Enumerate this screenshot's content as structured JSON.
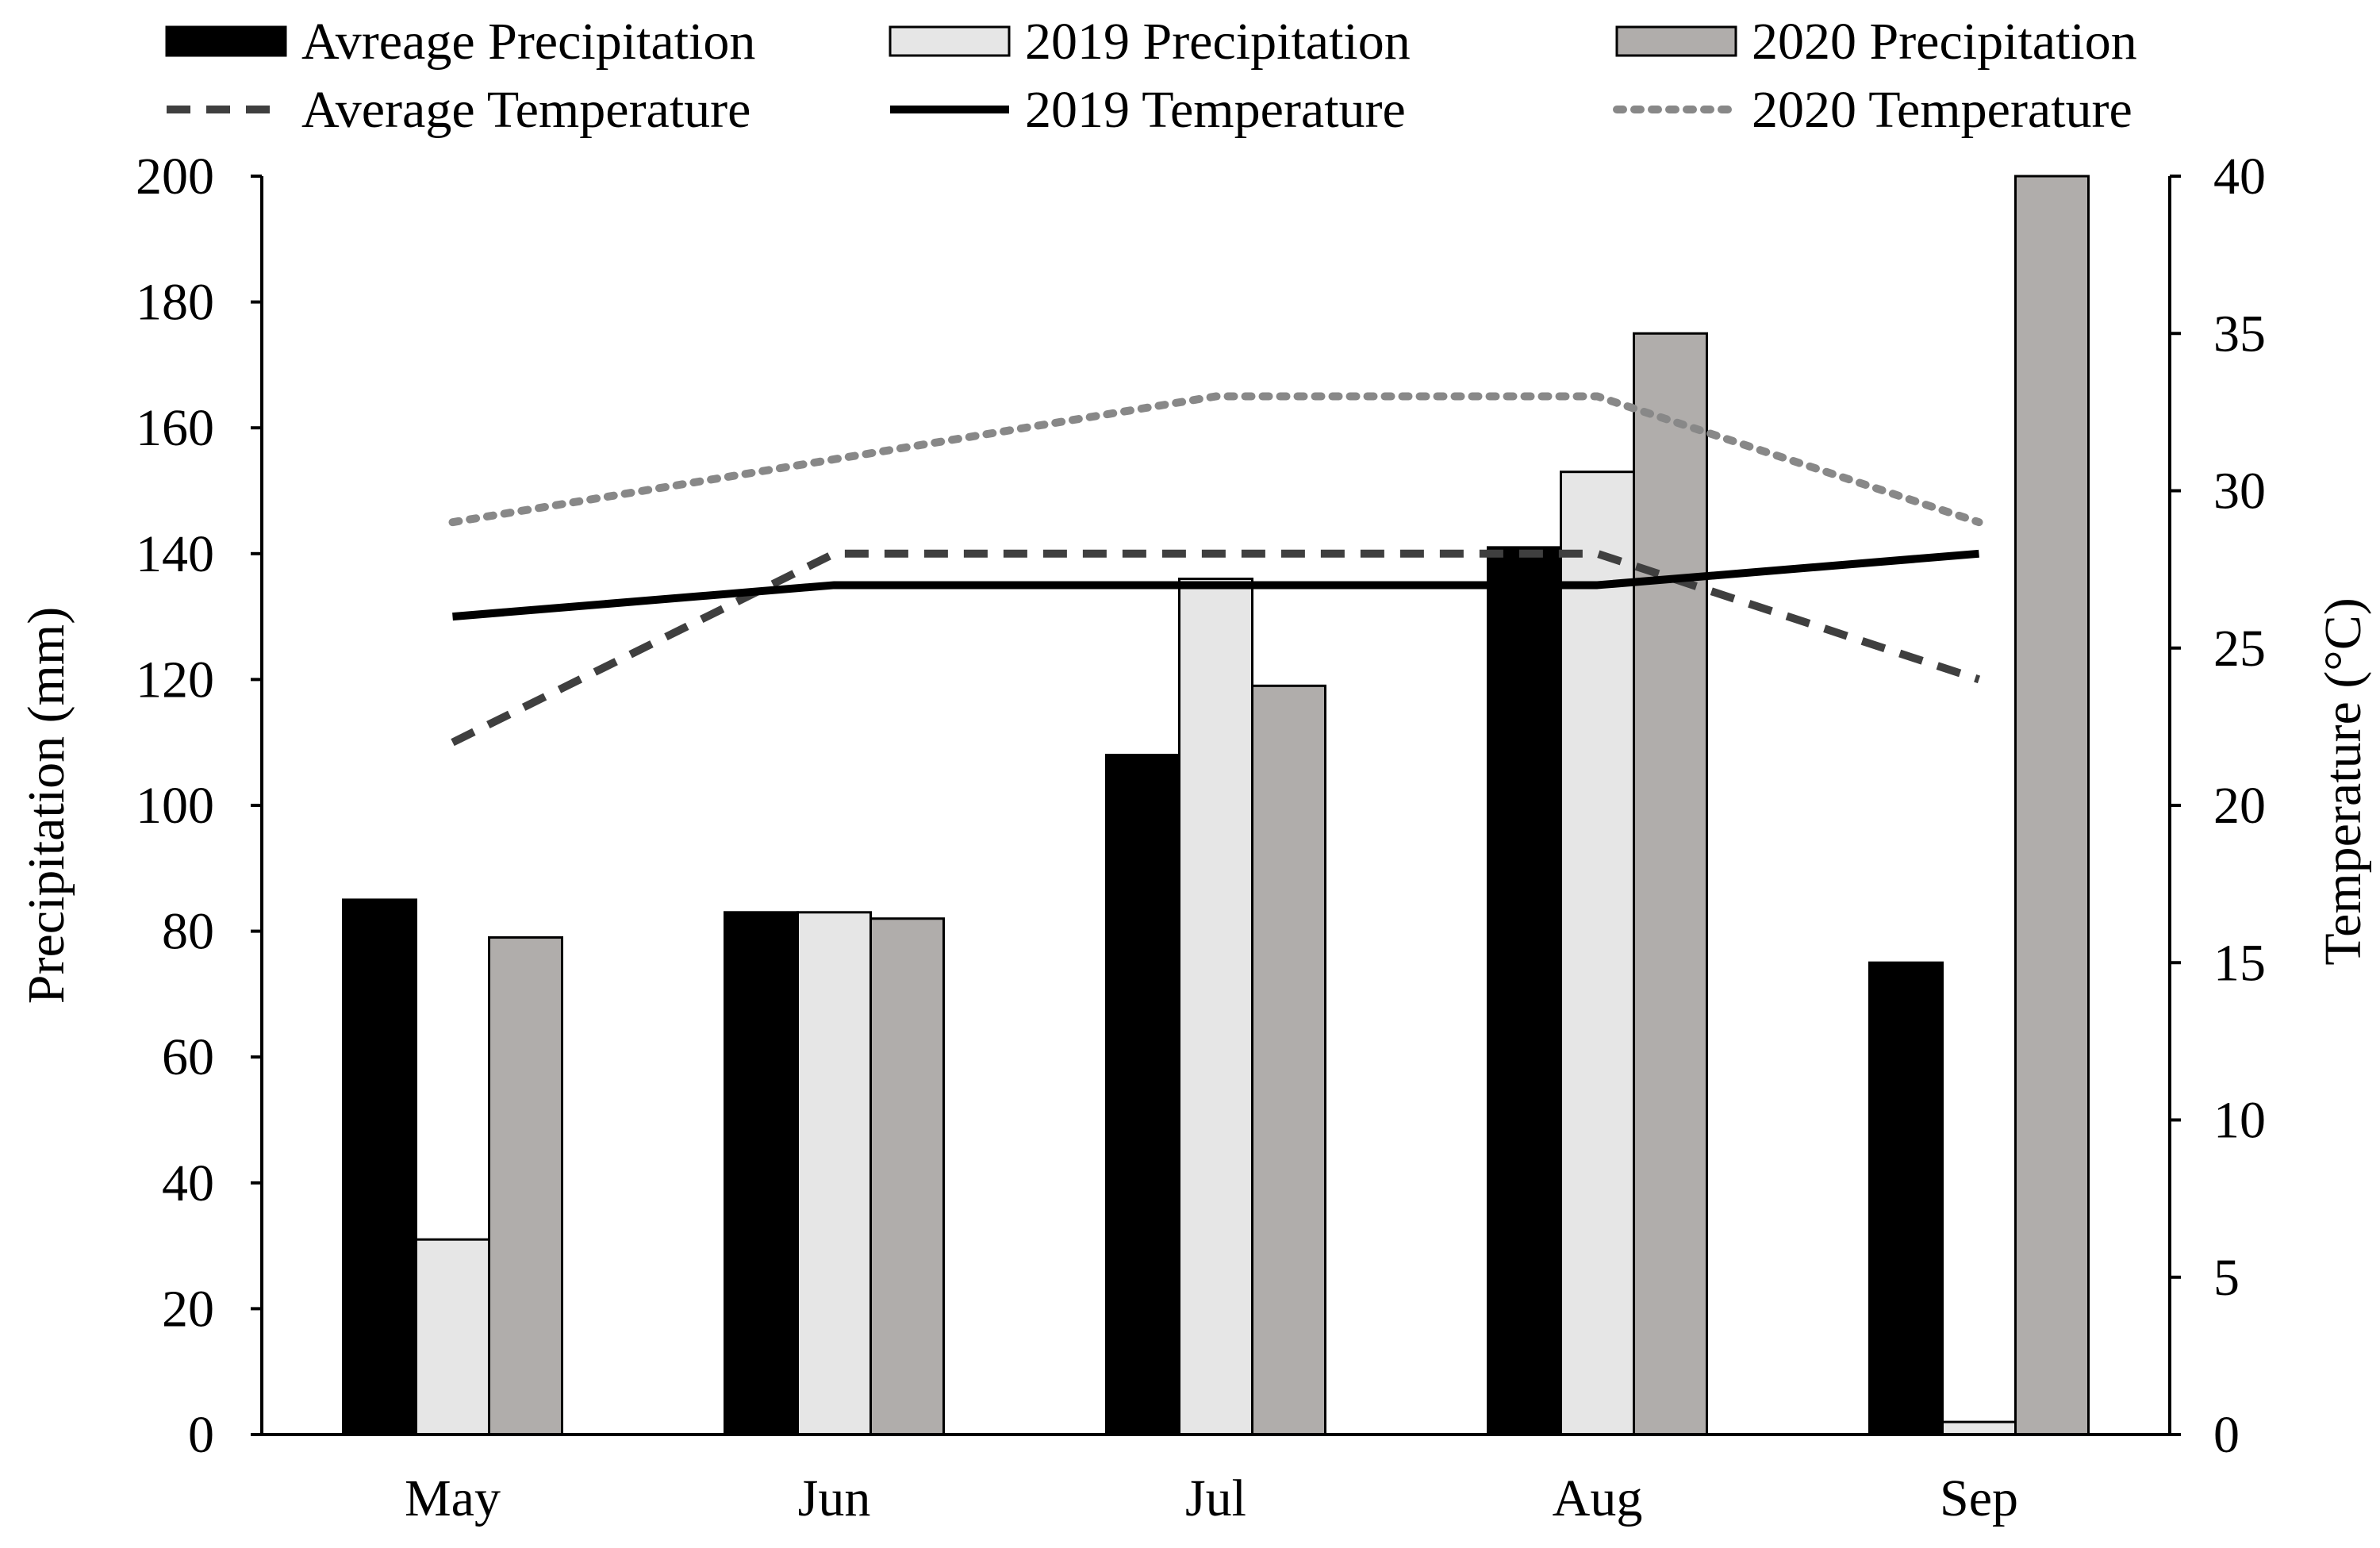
{
  "chart_data": {
    "type": "bar+line",
    "categories": [
      "May",
      "Jun",
      "Jul",
      "Aug",
      "Sep"
    ],
    "bar_series": [
      {
        "name": "Avreage Precipitation",
        "color": "#000000",
        "values": [
          85,
          83,
          108,
          141,
          75
        ]
      },
      {
        "name": "2019 Precipitation",
        "color": "#e6e6e6",
        "values": [
          31,
          83,
          136,
          153,
          2
        ]
      },
      {
        "name": "2020 Precipitation",
        "color": "#b0adab",
        "values": [
          79,
          82,
          119,
          175,
          200
        ]
      }
    ],
    "line_series": [
      {
        "name": "Average Temperature",
        "color": "#3f3f3f",
        "style": "dashed",
        "values": [
          22,
          28,
          28,
          28,
          24
        ]
      },
      {
        "name": "2019 Temperature",
        "color": "#000000",
        "style": "solid",
        "values": [
          26,
          27,
          27,
          27,
          28
        ]
      },
      {
        "name": "2020 Temperature",
        "color": "#888888",
        "style": "dotted",
        "values": [
          29,
          31,
          33,
          33,
          29
        ]
      }
    ],
    "y_left": {
      "label": "Precipitation (mm)",
      "min": 0,
      "max": 200,
      "step": 20,
      "ticks": [
        "0",
        "20",
        "40",
        "60",
        "80",
        "100",
        "120",
        "140",
        "160",
        "180",
        "200"
      ]
    },
    "y_right": {
      "label": "Temperature (°C)",
      "min": 0,
      "max": 40,
      "step": 5,
      "ticks": [
        "0",
        "5",
        "10",
        "15",
        "20",
        "25",
        "30",
        "35",
        "40"
      ]
    },
    "legend_position": "top",
    "grid": false
  }
}
